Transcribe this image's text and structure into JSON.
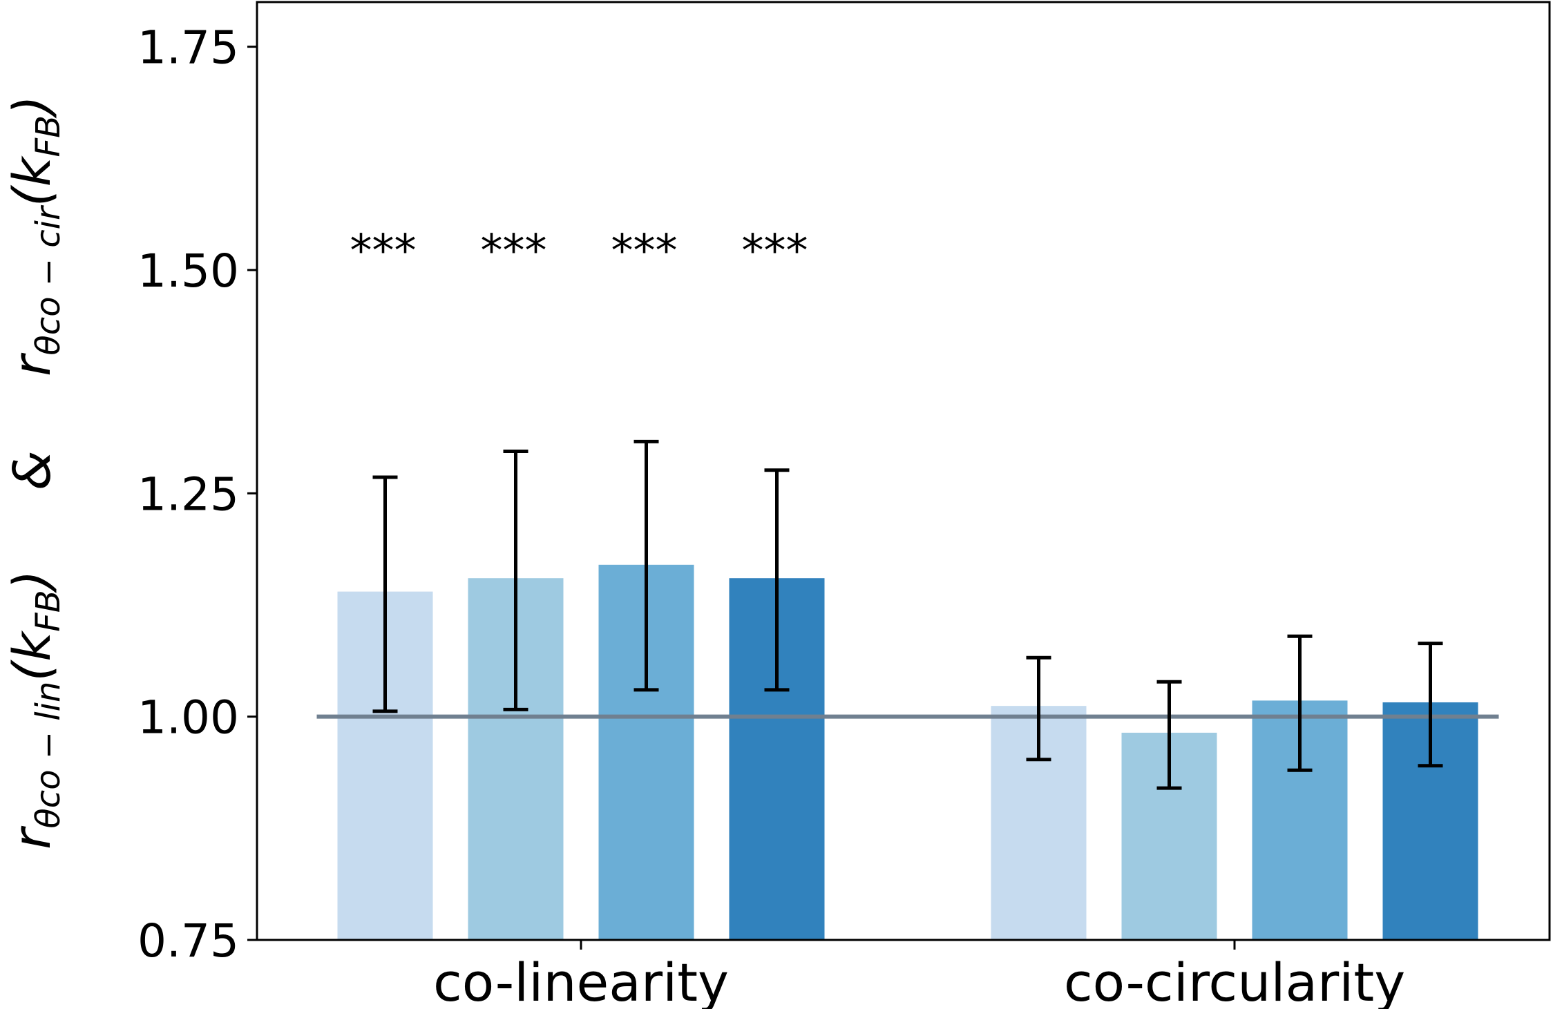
{
  "chart_data": {
    "type": "bar",
    "categories": [
      "co-linearity",
      "co-circularity"
    ],
    "series": [
      {
        "color": "#c6dbef",
        "values": [
          1.14,
          1.012
        ],
        "err_low": [
          1.006,
          0.952
        ],
        "err_high": [
          1.268,
          1.066
        ]
      },
      {
        "color": "#9ecae1",
        "values": [
          1.155,
          0.982
        ],
        "err_low": [
          1.008,
          0.92
        ],
        "err_high": [
          1.297,
          1.039
        ]
      },
      {
        "color": "#6baed6",
        "values": [
          1.17,
          1.018
        ],
        "err_low": [
          1.03,
          0.94
        ],
        "err_high": [
          1.308,
          1.09
        ]
      },
      {
        "color": "#3182bd",
        "values": [
          1.155,
          1.016
        ],
        "err_low": [
          1.03,
          0.945
        ],
        "err_high": [
          1.276,
          1.082
        ]
      }
    ],
    "significance": [
      [
        "***",
        "***",
        "***",
        "***"
      ],
      [
        "",
        "",
        "",
        ""
      ]
    ],
    "significance_y": 1.52,
    "reference_line": {
      "y": 1.0,
      "color": "#708090"
    },
    "ylim": [
      0.75,
      1.8
    ],
    "yticks": [
      0.75,
      1.0,
      1.25,
      1.5,
      1.75
    ],
    "ytick_labels": [
      "0.75",
      "1.00",
      "1.25",
      "1.50",
      "1.75"
    ],
    "ylabel": {
      "part1_main": "r",
      "part1_sub": "θco − lin",
      "part1_paren": "(k",
      "part1_paren_sub": "FB",
      "part1_close": ")",
      "connector": "&",
      "part2_main": "r",
      "part2_sub": "θco − cir",
      "part2_paren": "(k",
      "part2_paren_sub": "FB",
      "part2_close": ")"
    },
    "xlabel": "",
    "title": "",
    "grid": false
  }
}
